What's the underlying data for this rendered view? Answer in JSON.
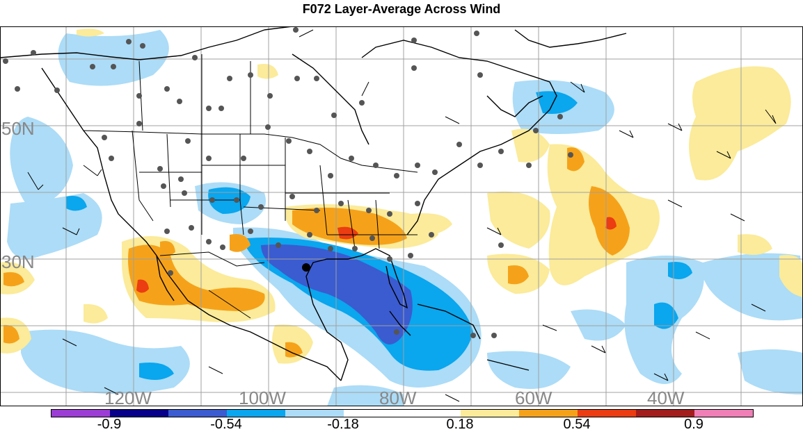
{
  "title": "F072 Layer-Average Across Wind",
  "lat_labels": [
    "50N",
    "30N"
  ],
  "lon_labels": [
    "120W",
    "100W",
    "80W",
    "60W",
    "40W"
  ],
  "colorbar": {
    "labels": [
      "-0.9",
      "-0.54",
      "-0.18",
      "0.18",
      "0.54",
      "0.9"
    ],
    "colors": [
      "#9c3ed6",
      "#08008a",
      "#3b5bd0",
      "#0aa6ee",
      "#acdcf7",
      "#ffffff",
      "#ffffff",
      "#fbeb9a",
      "#f5a21a",
      "#eb3c12",
      "#a31d1d",
      "#ef7fb6"
    ]
  },
  "fill_colors": {
    "light_blue": "#acdcf7",
    "mid_blue": "#0aa6ee",
    "dark_blue": "#3b5bd0",
    "light_yellow": "#fbeb9a",
    "orange": "#f5a21a",
    "red_orange": "#eb3c12",
    "station": "#555555",
    "grid": "#a0a0a0"
  }
}
